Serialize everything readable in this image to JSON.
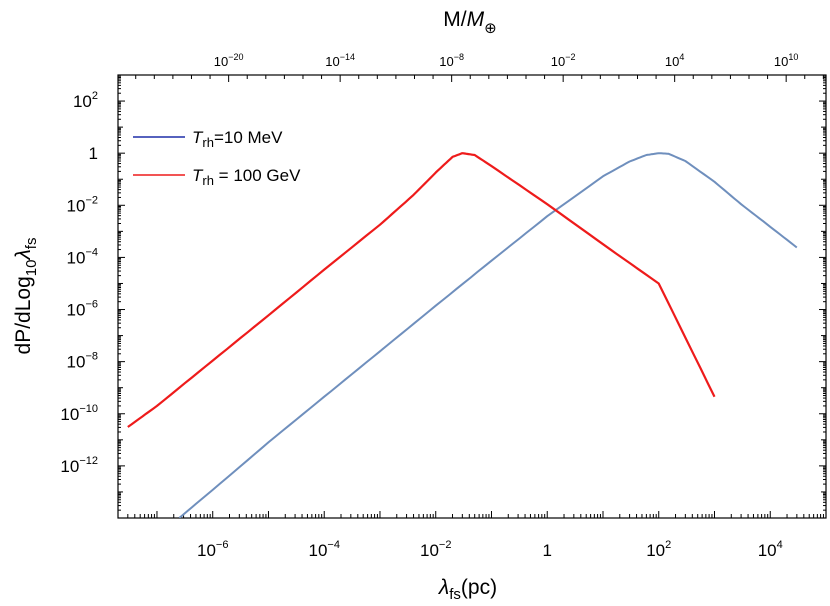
{
  "chart_data": {
    "type": "line",
    "x_axis": {
      "scale": "log",
      "label": "λ",
      "label_sub": "fs",
      "label_unit": "(pc)",
      "range": [
        2e-08,
        100000.0
      ],
      "ticks": [
        {
          "value": 1e-06,
          "base": "10",
          "exp": "−6"
        },
        {
          "value": 0.0001,
          "base": "10",
          "exp": "−4"
        },
        {
          "value": 0.01,
          "base": "10",
          "exp": "−2"
        },
        {
          "value": 1,
          "base": "1",
          "exp": ""
        },
        {
          "value": 100.0,
          "base": "10",
          "exp": "2"
        },
        {
          "value": 10000.0,
          "base": "10",
          "exp": "4"
        }
      ]
    },
    "top_axis": {
      "scale": "log",
      "label": "M/",
      "label_italic": "M",
      "label_sub": "⊕",
      "ticks": [
        {
          "value": 1e-20,
          "base": "10",
          "exp": "−20"
        },
        {
          "value": 1e-14,
          "base": "10",
          "exp": "−14"
        },
        {
          "value": 1e-08,
          "base": "10",
          "exp": "−8"
        },
        {
          "value": 0.01,
          "base": "10",
          "exp": "−2"
        },
        {
          "value": 10000.0,
          "base": "10",
          "exp": "4"
        },
        {
          "value": 10000000000.0,
          "base": "10",
          "exp": "10"
        }
      ]
    },
    "y_axis": {
      "scale": "log",
      "label": "dP/dLog",
      "label_sub": "10",
      "label_lambda": "λ",
      "label_lambda_sub": "fs",
      "range": [
        1e-14,
        1000.0
      ],
      "ticks": [
        {
          "value": 100.0,
          "base": "10",
          "exp": "2"
        },
        {
          "value": 1,
          "base": "1",
          "exp": ""
        },
        {
          "value": 0.01,
          "base": "10",
          "exp": "−2"
        },
        {
          "value": 0.0001,
          "base": "10",
          "exp": "−4"
        },
        {
          "value": 1e-06,
          "base": "10",
          "exp": "−6"
        },
        {
          "value": 1e-08,
          "base": "10",
          "exp": "−8"
        },
        {
          "value": 1e-10,
          "base": "10",
          "exp": "−10"
        },
        {
          "value": 1e-12,
          "base": "10",
          "exp": "−12"
        }
      ]
    },
    "series": [
      {
        "name": "T",
        "name_sub": "rh",
        "name_value": "=10 MeV",
        "color": "#6f8fbd",
        "legend_color": "#1f2fa8",
        "x": [
          2.5e-07,
          1e-06,
          1e-05,
          0.0001,
          0.001,
          0.01,
          0.1,
          1,
          10,
          30,
          60,
          100,
          150,
          300,
          1000,
          3000,
          10000,
          30000
        ],
        "y": [
          1e-14,
          1.2e-13,
          8e-12,
          4.5e-10,
          2.5e-08,
          1.4e-06,
          7.5e-05,
          0.0038,
          0.13,
          0.48,
          0.85,
          1.0,
          0.95,
          0.5,
          0.08,
          0.011,
          0.0015,
          0.00024
        ]
      },
      {
        "name": "T",
        "name_sub": "rh",
        "name_value": " = 100 GeV",
        "color": "#ee1b1b",
        "legend_color": "#ee1b1b",
        "x": [
          3e-08,
          1e-07,
          1e-06,
          1e-05,
          0.0001,
          0.001,
          0.004,
          0.01,
          0.02,
          0.03,
          0.05,
          0.1,
          1,
          10,
          100,
          1000
        ],
        "y": [
          3.1e-11,
          2e-10,
          1.1e-08,
          6e-07,
          3.4e-05,
          0.0018,
          0.025,
          0.18,
          0.72,
          1.0,
          0.85,
          0.32,
          0.011,
          0.00032,
          1e-05,
          4.5e-10
        ]
      }
    ],
    "legend_position": "top-left",
    "grid": false
  }
}
